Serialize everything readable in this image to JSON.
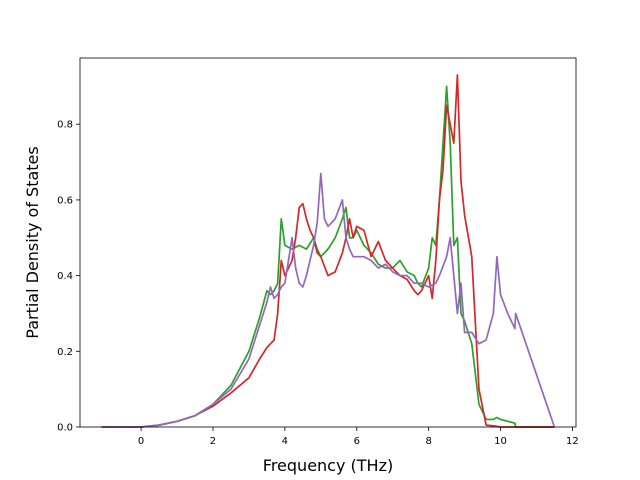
{
  "chart_data": {
    "type": "line",
    "title": "",
    "xlabel": "Frequency (THz)",
    "ylabel": "Partial Density of States",
    "xlim": [
      -1.7,
      12.1
    ],
    "ylim": [
      0.0,
      0.975
    ],
    "x_ticks": [
      0,
      2,
      4,
      6,
      8,
      10,
      12
    ],
    "y_ticks": [
      0.0,
      0.2,
      0.4,
      0.6,
      0.8
    ],
    "x_tick_labels": [
      "0",
      "2",
      "4",
      "6",
      "8",
      "10",
      "12"
    ],
    "y_tick_labels": [
      "0.0",
      "0.2",
      "0.4",
      "0.6",
      "0.8"
    ],
    "grid": false,
    "legend": false,
    "series": [
      {
        "color": "#2ca02c",
        "x": [
          -1.1,
          0,
          0.5,
          1.0,
          1.5,
          2.0,
          2.5,
          3.0,
          3.3,
          3.5,
          3.6,
          3.7,
          3.8,
          3.9,
          4.0,
          4.2,
          4.4,
          4.6,
          4.8,
          4.9,
          5.0,
          5.2,
          5.4,
          5.6,
          5.7,
          5.8,
          5.9,
          6.0,
          6.2,
          6.4,
          6.6,
          6.8,
          7.0,
          7.2,
          7.4,
          7.6,
          7.7,
          7.8,
          8.0,
          8.1,
          8.2,
          8.3,
          8.4,
          8.5,
          8.6,
          8.7,
          8.8,
          8.9,
          9.0,
          9.2,
          9.4,
          9.6,
          9.8,
          9.9,
          10.0,
          10.2,
          10.4,
          10.42,
          11.5
        ],
        "y": [
          0.0,
          0.0,
          0.005,
          0.015,
          0.03,
          0.06,
          0.11,
          0.2,
          0.29,
          0.36,
          0.35,
          0.36,
          0.38,
          0.55,
          0.48,
          0.47,
          0.48,
          0.47,
          0.5,
          0.47,
          0.45,
          0.47,
          0.5,
          0.55,
          0.58,
          0.5,
          0.5,
          0.52,
          0.48,
          0.46,
          0.43,
          0.42,
          0.42,
          0.44,
          0.41,
          0.4,
          0.38,
          0.37,
          0.42,
          0.5,
          0.48,
          0.6,
          0.75,
          0.9,
          0.75,
          0.48,
          0.5,
          0.3,
          0.28,
          0.22,
          0.06,
          0.02,
          0.02,
          0.025,
          0.02,
          0.015,
          0.01,
          0.0,
          0.0
        ]
      },
      {
        "color": "#d62728",
        "x": [
          -1.1,
          0,
          0.5,
          1.0,
          1.5,
          2.0,
          2.5,
          3.0,
          3.3,
          3.5,
          3.7,
          3.8,
          3.9,
          4.0,
          4.2,
          4.3,
          4.4,
          4.5,
          4.6,
          4.7,
          4.8,
          4.9,
          5.0,
          5.2,
          5.4,
          5.6,
          5.7,
          5.8,
          5.9,
          6.0,
          6.2,
          6.4,
          6.6,
          6.8,
          7.0,
          7.2,
          7.4,
          7.6,
          7.7,
          7.8,
          8.0,
          8.1,
          8.2,
          8.3,
          8.4,
          8.5,
          8.6,
          8.7,
          8.8,
          8.9,
          9.0,
          9.2,
          9.4,
          9.6,
          9.8,
          10.0,
          10.2,
          10.4,
          11.5
        ],
        "y": [
          0.0,
          0.0,
          0.005,
          0.015,
          0.03,
          0.055,
          0.09,
          0.13,
          0.18,
          0.21,
          0.23,
          0.3,
          0.44,
          0.4,
          0.44,
          0.5,
          0.58,
          0.59,
          0.55,
          0.52,
          0.5,
          0.46,
          0.45,
          0.4,
          0.41,
          0.46,
          0.5,
          0.55,
          0.5,
          0.53,
          0.52,
          0.45,
          0.49,
          0.44,
          0.42,
          0.4,
          0.39,
          0.36,
          0.35,
          0.36,
          0.4,
          0.34,
          0.44,
          0.6,
          0.68,
          0.85,
          0.8,
          0.75,
          0.93,
          0.65,
          0.56,
          0.45,
          0.1,
          0.005,
          0.003,
          0.0,
          0.0,
          0.0,
          0.0
        ]
      },
      {
        "color": "#9467bd",
        "x": [
          -1.1,
          0,
          0.5,
          1.0,
          1.5,
          2.0,
          2.5,
          3.0,
          3.3,
          3.5,
          3.6,
          3.7,
          3.8,
          3.9,
          4.0,
          4.2,
          4.3,
          4.4,
          4.5,
          4.6,
          4.8,
          4.9,
          5.0,
          5.1,
          5.2,
          5.4,
          5.6,
          5.7,
          5.8,
          5.9,
          6.0,
          6.2,
          6.4,
          6.6,
          6.8,
          7.0,
          7.2,
          7.4,
          7.6,
          7.8,
          8.0,
          8.2,
          8.3,
          8.5,
          8.6,
          8.7,
          8.8,
          8.9,
          9.0,
          9.2,
          9.4,
          9.6,
          9.8,
          9.9,
          10.0,
          10.2,
          10.3,
          10.4,
          10.42,
          11.5
        ],
        "y": [
          0.0,
          0.0,
          0.005,
          0.015,
          0.03,
          0.06,
          0.1,
          0.18,
          0.27,
          0.33,
          0.37,
          0.34,
          0.35,
          0.37,
          0.38,
          0.5,
          0.42,
          0.38,
          0.37,
          0.4,
          0.48,
          0.54,
          0.67,
          0.55,
          0.53,
          0.55,
          0.6,
          0.5,
          0.47,
          0.45,
          0.45,
          0.45,
          0.44,
          0.42,
          0.43,
          0.41,
          0.4,
          0.4,
          0.38,
          0.38,
          0.37,
          0.38,
          0.4,
          0.45,
          0.5,
          0.4,
          0.3,
          0.38,
          0.25,
          0.25,
          0.22,
          0.23,
          0.3,
          0.45,
          0.35,
          0.3,
          0.28,
          0.26,
          0.3,
          0.0
        ]
      }
    ]
  }
}
